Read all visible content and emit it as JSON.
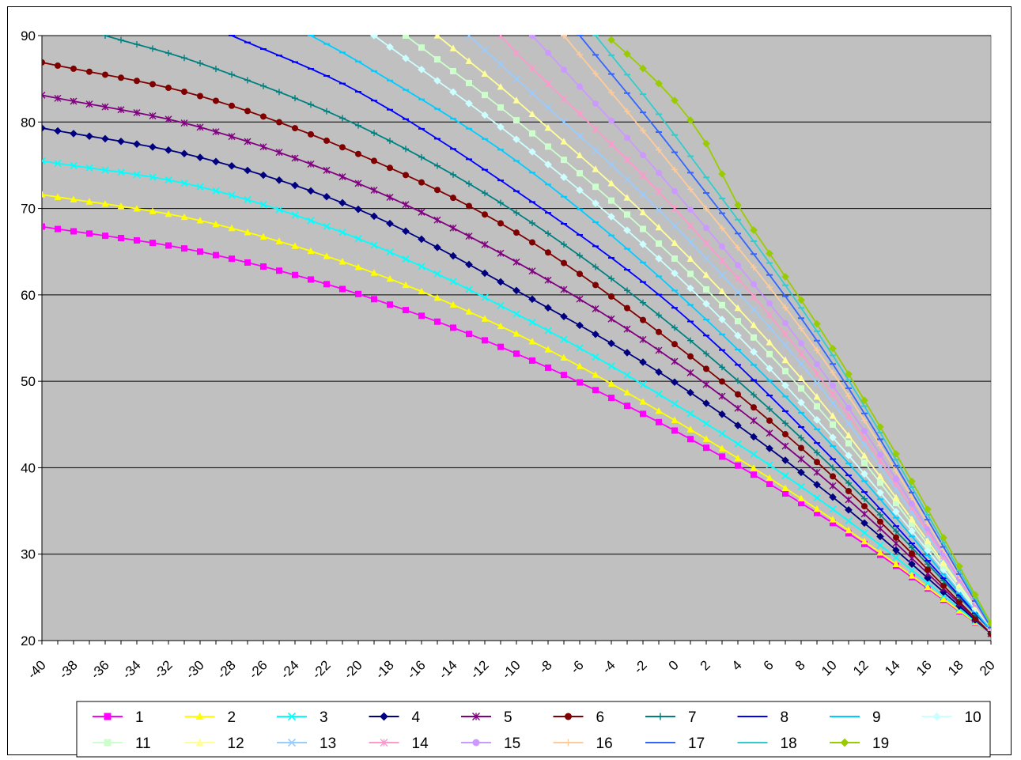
{
  "chart_data": {
    "type": "line",
    "title": "",
    "xlabel": "",
    "ylabel": "",
    "xlim": [
      -40,
      20
    ],
    "ylim": [
      20,
      90
    ],
    "x_ticks": [
      "-40",
      "-38",
      "-36",
      "-34",
      "-32",
      "-30",
      "-28",
      "-26",
      "-24",
      "-22",
      "-20",
      "-18",
      "-16",
      "-14",
      "-12",
      "-10",
      "-8",
      "-6",
      "-4",
      "-2",
      "0",
      "2",
      "4",
      "6",
      "8",
      "10",
      "12",
      "14",
      "16",
      "18",
      "20"
    ],
    "y_ticks": [
      "20",
      "30",
      "40",
      "50",
      "60",
      "70",
      "80",
      "90"
    ],
    "grid": "horizontal",
    "legend_position": "bottom",
    "x_step": 1,
    "series": [
      {
        "name": "1",
        "color": "#ff00ff",
        "marker": "square",
        "y_at_x": [
          [
            -40,
            67.9
          ],
          [
            -30,
            65.0
          ],
          [
            -20,
            60.1
          ],
          [
            -10,
            53.2
          ],
          [
            0,
            44.3
          ],
          [
            10,
            33.6
          ],
          [
            20,
            20.8
          ]
        ]
      },
      {
        "name": "2",
        "color": "#ffff00",
        "marker": "triangle",
        "y_at_x": [
          [
            -40,
            71.6
          ],
          [
            -30,
            68.6
          ],
          [
            -20,
            63.2
          ],
          [
            -10,
            55.5
          ],
          [
            0,
            45.5
          ],
          [
            10,
            34.0
          ],
          [
            20,
            20.8
          ]
        ]
      },
      {
        "name": "3",
        "color": "#00ffff",
        "marker": "x",
        "y_at_x": [
          [
            -40,
            75.5
          ],
          [
            -30,
            72.5
          ],
          [
            -20,
            66.5
          ],
          [
            -10,
            57.8
          ],
          [
            0,
            47.4
          ],
          [
            10,
            35.2
          ],
          [
            20,
            20.8
          ]
        ]
      },
      {
        "name": "4",
        "color": "#000080",
        "marker": "diamond",
        "y_at_x": [
          [
            -40,
            79.3
          ],
          [
            -30,
            75.9
          ],
          [
            -20,
            69.9
          ],
          [
            -10,
            60.5
          ],
          [
            0,
            49.9
          ],
          [
            10,
            36.6
          ],
          [
            20,
            20.8
          ]
        ]
      },
      {
        "name": "5",
        "color": "#800080",
        "marker": "star",
        "y_at_x": [
          [
            -40,
            83.1
          ],
          [
            -30,
            79.4
          ],
          [
            -20,
            72.9
          ],
          [
            -10,
            63.8
          ],
          [
            0,
            52.3
          ],
          [
            10,
            37.9
          ],
          [
            20,
            20.8
          ]
        ]
      },
      {
        "name": "6",
        "color": "#800000",
        "marker": "circle",
        "y_at_x": [
          [
            -40,
            86.9
          ],
          [
            -30,
            83.0
          ],
          [
            -20,
            76.3
          ],
          [
            -10,
            67.2
          ],
          [
            0,
            54.3
          ],
          [
            10,
            39.0
          ],
          [
            20,
            20.8
          ]
        ]
      },
      {
        "name": "7",
        "color": "#008080",
        "marker": "plus",
        "y_at_x": [
          [
            -36,
            90.0
          ],
          [
            -30,
            86.8
          ],
          [
            -20,
            79.6
          ],
          [
            -10,
            69.5
          ],
          [
            0,
            56.2
          ],
          [
            10,
            40.0
          ],
          [
            20,
            21.2
          ]
        ]
      },
      {
        "name": "8",
        "color": "#0000ff",
        "marker": "dash",
        "y_at_x": [
          [
            -28,
            90.0
          ],
          [
            -20,
            83.5
          ],
          [
            -10,
            72.0
          ],
          [
            0,
            58.5
          ],
          [
            10,
            41.0
          ],
          [
            20,
            21.2
          ]
        ]
      },
      {
        "name": "9",
        "color": "#00ccff",
        "marker": "dash",
        "y_at_x": [
          [
            -23,
            90.0
          ],
          [
            -20,
            87.0
          ],
          [
            -10,
            75.5
          ],
          [
            0,
            60.5
          ],
          [
            10,
            42.5
          ],
          [
            20,
            21.2
          ]
        ]
      },
      {
        "name": "10",
        "color": "#ccffff",
        "marker": "diamond",
        "y_at_x": [
          [
            -19,
            90.0
          ],
          [
            -10,
            78.0
          ],
          [
            0,
            62.5
          ],
          [
            10,
            43.5
          ],
          [
            20,
            21.5
          ]
        ]
      },
      {
        "name": "11",
        "color": "#ccffcc",
        "marker": "square",
        "y_at_x": [
          [
            -17,
            90.0
          ],
          [
            -10,
            80.2
          ],
          [
            0,
            64.2
          ],
          [
            10,
            45.0
          ],
          [
            20,
            21.5
          ]
        ]
      },
      {
        "name": "12",
        "color": "#ffff99",
        "marker": "triangle",
        "y_at_x": [
          [
            -15,
            90.0
          ],
          [
            -10,
            82.5
          ],
          [
            0,
            66.0
          ],
          [
            10,
            46.0
          ],
          [
            20,
            21.5
          ]
        ]
      },
      {
        "name": "13",
        "color": "#99ccff",
        "marker": "x",
        "y_at_x": [
          [
            -13,
            90.0
          ],
          [
            -10,
            85.0
          ],
          [
            0,
            68.0
          ],
          [
            10,
            47.5
          ],
          [
            20,
            21.5
          ]
        ]
      },
      {
        "name": "14",
        "color": "#ff99cc",
        "marker": "star",
        "y_at_x": [
          [
            -11,
            90.0
          ],
          [
            -10,
            88.0
          ],
          [
            0,
            70.0
          ],
          [
            10,
            48.5
          ],
          [
            20,
            21.5
          ]
        ]
      },
      {
        "name": "15",
        "color": "#cc99ff",
        "marker": "circle",
        "y_at_x": [
          [
            -9,
            90.0
          ],
          [
            0,
            72.0
          ],
          [
            10,
            49.5
          ],
          [
            20,
            21.5
          ]
        ]
      },
      {
        "name": "16",
        "color": "#ffcc99",
        "marker": "plus",
        "y_at_x": [
          [
            -7,
            90.0
          ],
          [
            0,
            74.5
          ],
          [
            10,
            51.0
          ],
          [
            20,
            21.5
          ]
        ]
      },
      {
        "name": "17",
        "color": "#3366ff",
        "marker": "dash",
        "y_at_x": [
          [
            -6,
            90.0
          ],
          [
            0,
            76.5
          ],
          [
            10,
            52.0
          ],
          [
            20,
            21.5
          ]
        ]
      },
      {
        "name": "18",
        "color": "#33cccc",
        "marker": "dash",
        "y_at_x": [
          [
            -5,
            90.0
          ],
          [
            0,
            78.5
          ],
          [
            10,
            53.0
          ],
          [
            20,
            21.8
          ]
        ]
      },
      {
        "name": "19",
        "color": "#99cc00",
        "marker": "diamond",
        "y_at_x": [
          [
            -4,
            89.5
          ],
          [
            -2,
            86.2
          ],
          [
            0,
            82.5
          ],
          [
            2,
            77.5
          ],
          [
            4,
            70.4
          ],
          [
            6,
            64.8
          ],
          [
            8,
            59.4
          ],
          [
            10,
            53.8
          ],
          [
            12,
            47.8
          ],
          [
            14,
            41.6
          ],
          [
            16,
            35.2
          ],
          [
            18,
            28.6
          ],
          [
            20,
            22.0
          ]
        ]
      }
    ]
  }
}
